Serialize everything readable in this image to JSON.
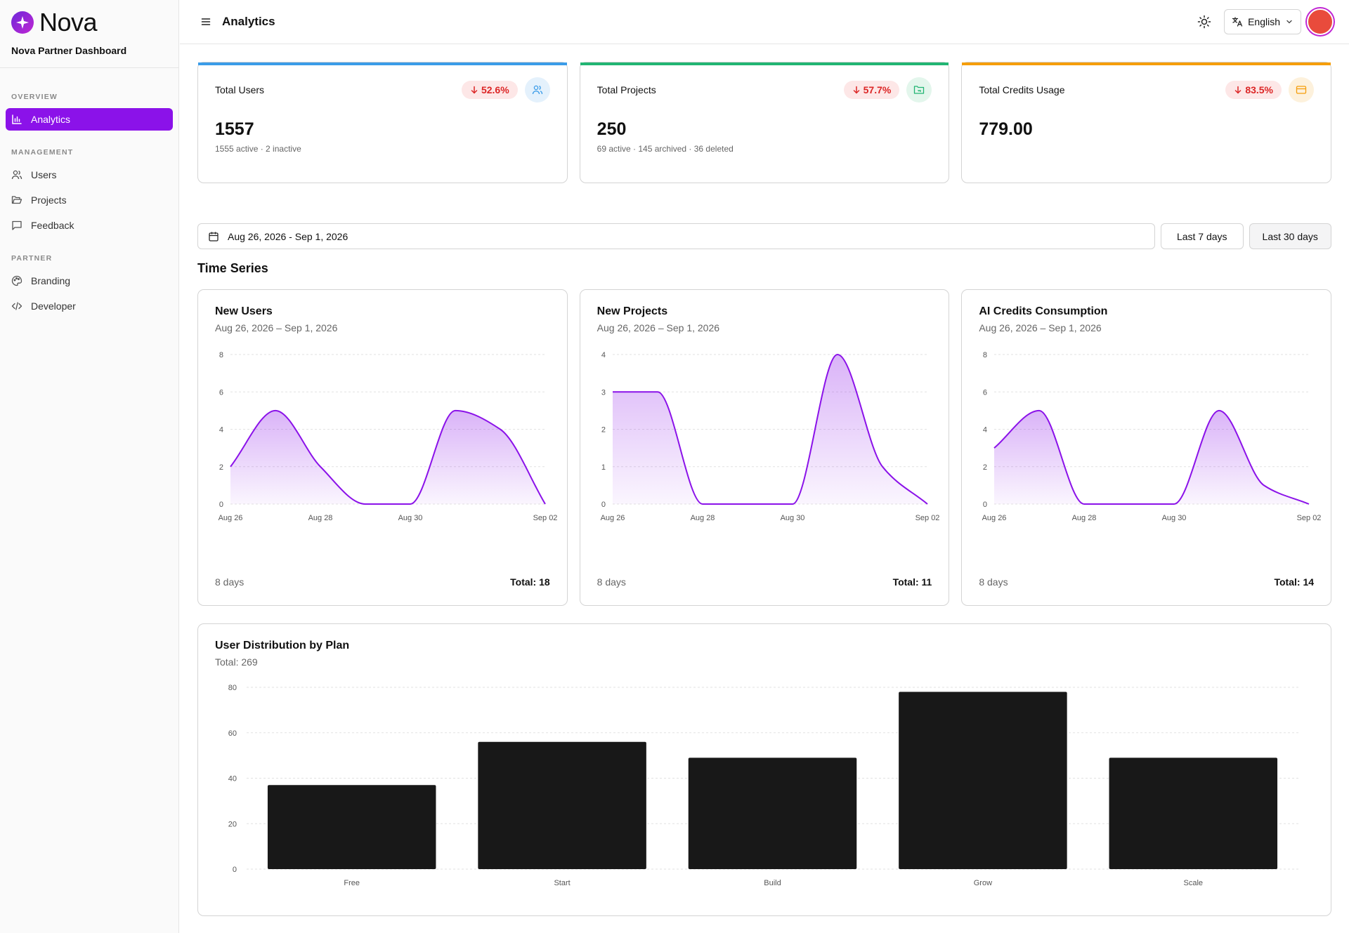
{
  "brand": {
    "name": "Nova",
    "subtitle": "Nova Partner Dashboard"
  },
  "sidebar": {
    "sections": [
      {
        "heading": "OVERVIEW",
        "items": [
          {
            "label": "Analytics",
            "icon": "bar-chart-icon",
            "active": true
          }
        ]
      },
      {
        "heading": "MANAGEMENT",
        "items": [
          {
            "label": "Users",
            "icon": "users-icon"
          },
          {
            "label": "Projects",
            "icon": "folder-icon"
          },
          {
            "label": "Feedback",
            "icon": "message-icon"
          }
        ]
      },
      {
        "heading": "PARTNER",
        "items": [
          {
            "label": "Branding",
            "icon": "palette-icon"
          },
          {
            "label": "Developer",
            "icon": "code-icon"
          }
        ]
      }
    ],
    "active_color": "#8b12e9"
  },
  "header": {
    "title": "Analytics",
    "language": "English"
  },
  "stats": [
    {
      "label": "Total Users",
      "change": "52.6%",
      "value": "1557",
      "sub": "1555 active · 2 inactive",
      "accent": "#3b9ce8",
      "icon": "users-icon"
    },
    {
      "label": "Total Projects",
      "change": "57.7%",
      "value": "250",
      "sub": "69 active · 145 archived · 36 deleted",
      "accent": "#22b573",
      "icon": "folder-icon"
    },
    {
      "label": "Total Credits Usage",
      "change": "83.5%",
      "value": "779.00",
      "sub": "",
      "accent": "#f59e0b",
      "icon": "credit-card-icon"
    }
  ],
  "filters": {
    "date_range": "Aug 26, 2026 - Sep 1, 2026",
    "last7": "Last 7 days",
    "last30": "Last 30 days"
  },
  "time_series_title": "Time Series",
  "chart_data": [
    {
      "type": "area",
      "title": "New Users",
      "subtitle": "Aug 26, 2026 – Sep 1, 2026",
      "x": [
        "Aug 26",
        "Aug 27",
        "Aug 28",
        "Aug 29",
        "Aug 30",
        "Aug 31",
        "Sep 01",
        "Sep 02"
      ],
      "x_ticks": [
        "Aug 26",
        "Aug 28",
        "Aug 30",
        "Sep 02"
      ],
      "values": [
        2,
        5,
        2,
        0,
        0,
        5,
        4,
        0
      ],
      "ylim": [
        0,
        8
      ],
      "y_ticks": [
        0,
        2,
        4,
        6,
        8
      ],
      "footer_left": "8 days",
      "footer_right": "Total: 18"
    },
    {
      "type": "area",
      "title": "New Projects",
      "subtitle": "Aug 26, 2026 – Sep 1, 2026",
      "x": [
        "Aug 26",
        "Aug 27",
        "Aug 28",
        "Aug 29",
        "Aug 30",
        "Aug 31",
        "Sep 01",
        "Sep 02"
      ],
      "x_ticks": [
        "Aug 26",
        "Aug 28",
        "Aug 30",
        "Sep 02"
      ],
      "values": [
        3,
        3,
        0,
        0,
        0,
        4,
        1,
        0
      ],
      "ylim": [
        0,
        4
      ],
      "y_ticks": [
        0,
        1,
        2,
        3,
        4
      ],
      "footer_left": "8 days",
      "footer_right": "Total: 11"
    },
    {
      "type": "area",
      "title": "AI Credits Consumption",
      "subtitle": "Aug 26, 2026 – Sep 1, 2026",
      "x": [
        "Aug 26",
        "Aug 27",
        "Aug 28",
        "Aug 29",
        "Aug 30",
        "Aug 31",
        "Sep 01",
        "Sep 02"
      ],
      "x_ticks": [
        "Aug 26",
        "Aug 28",
        "Aug 30",
        "Sep 02"
      ],
      "values": [
        3,
        5,
        0,
        0,
        0,
        5,
        1,
        0
      ],
      "ylim": [
        0,
        8
      ],
      "y_ticks": [
        0,
        2,
        4,
        6,
        8
      ],
      "footer_left": "8 days",
      "footer_right": "Total: 14"
    },
    {
      "type": "bar",
      "title": "User Distribution by Plan",
      "subtitle": "Total: 269",
      "categories": [
        "Free",
        "Start",
        "Build",
        "Grow",
        "Scale"
      ],
      "values": [
        37,
        56,
        49,
        78,
        49
      ],
      "ylim": [
        0,
        80
      ],
      "y_ticks": [
        0,
        20,
        40,
        60,
        80
      ]
    }
  ],
  "colors": {
    "series_line": "#8b12e9",
    "bar_fill": "#181818"
  }
}
